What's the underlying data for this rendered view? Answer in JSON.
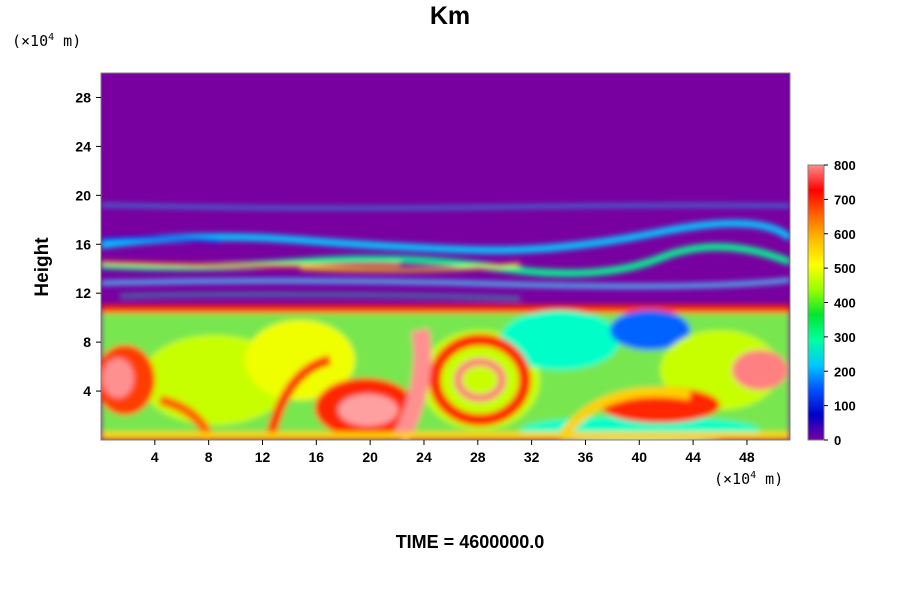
{
  "chart_data": {
    "type": "heatmap",
    "title": "Km",
    "ylabel": "Height",
    "y_unit_prefix": "(×10",
    "y_unit_exp": "4",
    "y_unit_suffix": " m)",
    "x_unit_prefix": "(×10",
    "x_unit_exp": "4",
    "x_unit_suffix": " m)",
    "x_ticks": [
      4,
      8,
      12,
      16,
      20,
      24,
      28,
      32,
      36,
      40,
      44,
      48
    ],
    "y_ticks": [
      4,
      8,
      12,
      16,
      20,
      24,
      28
    ],
    "xlim": [
      0,
      51.2
    ],
    "ylim": [
      0,
      30
    ],
    "colorbar": {
      "ticks": [
        0,
        100,
        200,
        300,
        400,
        500,
        600,
        700,
        800
      ],
      "range": [
        0,
        800
      ],
      "colors": [
        "#7800a0",
        "#0000c8",
        "#0050ff",
        "#00c8ff",
        "#00ffa0",
        "#00e632",
        "#96ff00",
        "#ffff00",
        "#ffbe00",
        "#ff6400",
        "#ff0000",
        "#ff8c8c"
      ]
    },
    "time_label": "TIME = 4600000.0"
  }
}
